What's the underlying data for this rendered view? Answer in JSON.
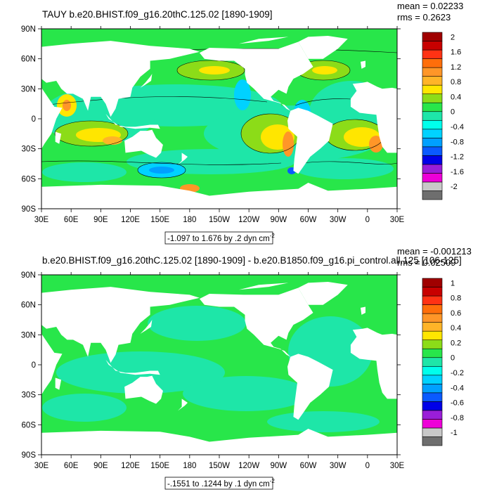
{
  "panels": [
    {
      "title": "TAUY b.e20.BHIST.f09_g16.20thC.125.02 [1890-1909]",
      "stats": {
        "mean": "mean = 0.02233",
        "rms": "rms = 0.2623"
      },
      "colorbar_labels": [
        "2",
        "1.6",
        "1.2",
        "0.8",
        "0.4",
        "0",
        "-0.4",
        "-0.8",
        "-1.2",
        "-1.6",
        "-2"
      ],
      "caption_prefix": "-1.097 to 1.676 by .2 dyn cm",
      "caption_sup": "-2"
    },
    {
      "title": "b.e20.BHIST.f09_g16.20thC.125.02 [1890-1909] - b.e20.B1850.f09_g16.pi_control.all.125 [106-125]",
      "stats": {
        "mean": "mean = -0.001213",
        "rms": "rms = 0.02509"
      },
      "colorbar_labels": [
        "1",
        "0.8",
        "0.6",
        "0.4",
        "0.2",
        "0",
        "-0.2",
        "-0.4",
        "-0.6",
        "-0.8",
        "-1"
      ],
      "caption_prefix": "-.1551 to .1244 by .1 dyn cm",
      "caption_sup": "-2"
    }
  ],
  "axes": {
    "lat_labels": [
      "90N",
      "60N",
      "30N",
      "0",
      "30S",
      "60S",
      "90S"
    ],
    "lon_labels": [
      "30E",
      "60E",
      "90E",
      "120E",
      "150E",
      "180",
      "150W",
      "120W",
      "90W",
      "60W",
      "30W",
      "0",
      "30E"
    ]
  },
  "colors": {
    "palette": [
      "#6e6e6e",
      "#c8c8c8",
      "#ee00d8",
      "#9a1ed8",
      "#0000e8",
      "#0a5aff",
      "#00a0ff",
      "#00d2ff",
      "#00ffec",
      "#1ee6a8",
      "#28e64a",
      "#8cdc18",
      "#ffe600",
      "#ffb428",
      "#ff9628",
      "#ff6e0a",
      "#ff3214",
      "#c80000",
      "#a00000"
    ],
    "land": "#ffffff"
  }
}
